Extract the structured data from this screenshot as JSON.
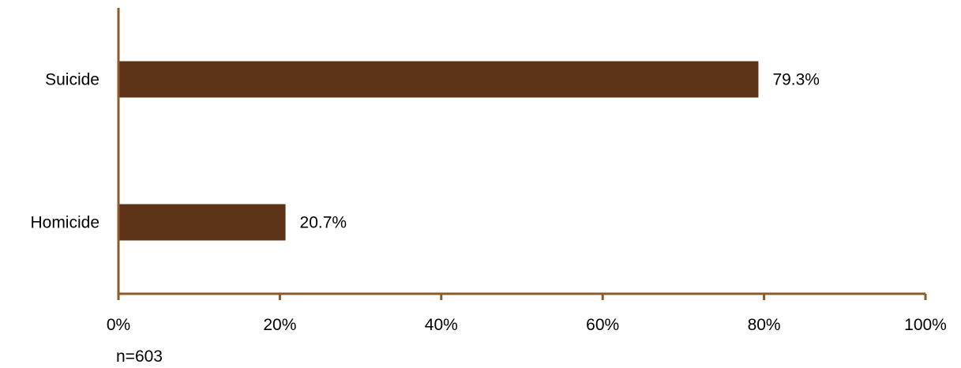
{
  "chart_data": {
    "type": "bar",
    "orientation": "horizontal",
    "categories": [
      "Suicide",
      "Homicide"
    ],
    "values": [
      79.3,
      20.7
    ],
    "data_labels": [
      "79.3%",
      "20.7%"
    ],
    "xlim": [
      0,
      100
    ],
    "x_ticks": [
      0,
      20,
      40,
      60,
      80,
      100
    ],
    "x_tick_labels": [
      "0%",
      "20%",
      "40%",
      "60%",
      "80%",
      "100%"
    ],
    "title": "",
    "xlabel": "",
    "ylabel": "",
    "grid": false,
    "legend": "none",
    "note": "n=603"
  },
  "colors": {
    "bar": "#5C3317",
    "axis": "#8B5A2B"
  }
}
